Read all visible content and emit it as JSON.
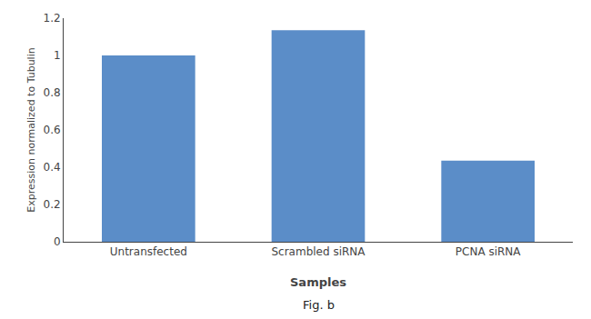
{
  "chart_data": {
    "type": "bar",
    "categories": [
      "Untransfected",
      "Scrambled siRNA",
      "PCNA siRNA"
    ],
    "values": [
      1.0,
      1.135,
      0.435
    ],
    "color": "#5b8dc8",
    "xlabel": "Samples",
    "ylabel": "Expression normalized to Tubulin",
    "ylim": [
      0,
      1.2
    ],
    "yticks": [
      0,
      0.2,
      0.4,
      0.6,
      0.8,
      1,
      1.2
    ],
    "grid": false,
    "annotations": [
      {
        "text": "Fig. b"
      }
    ]
  }
}
